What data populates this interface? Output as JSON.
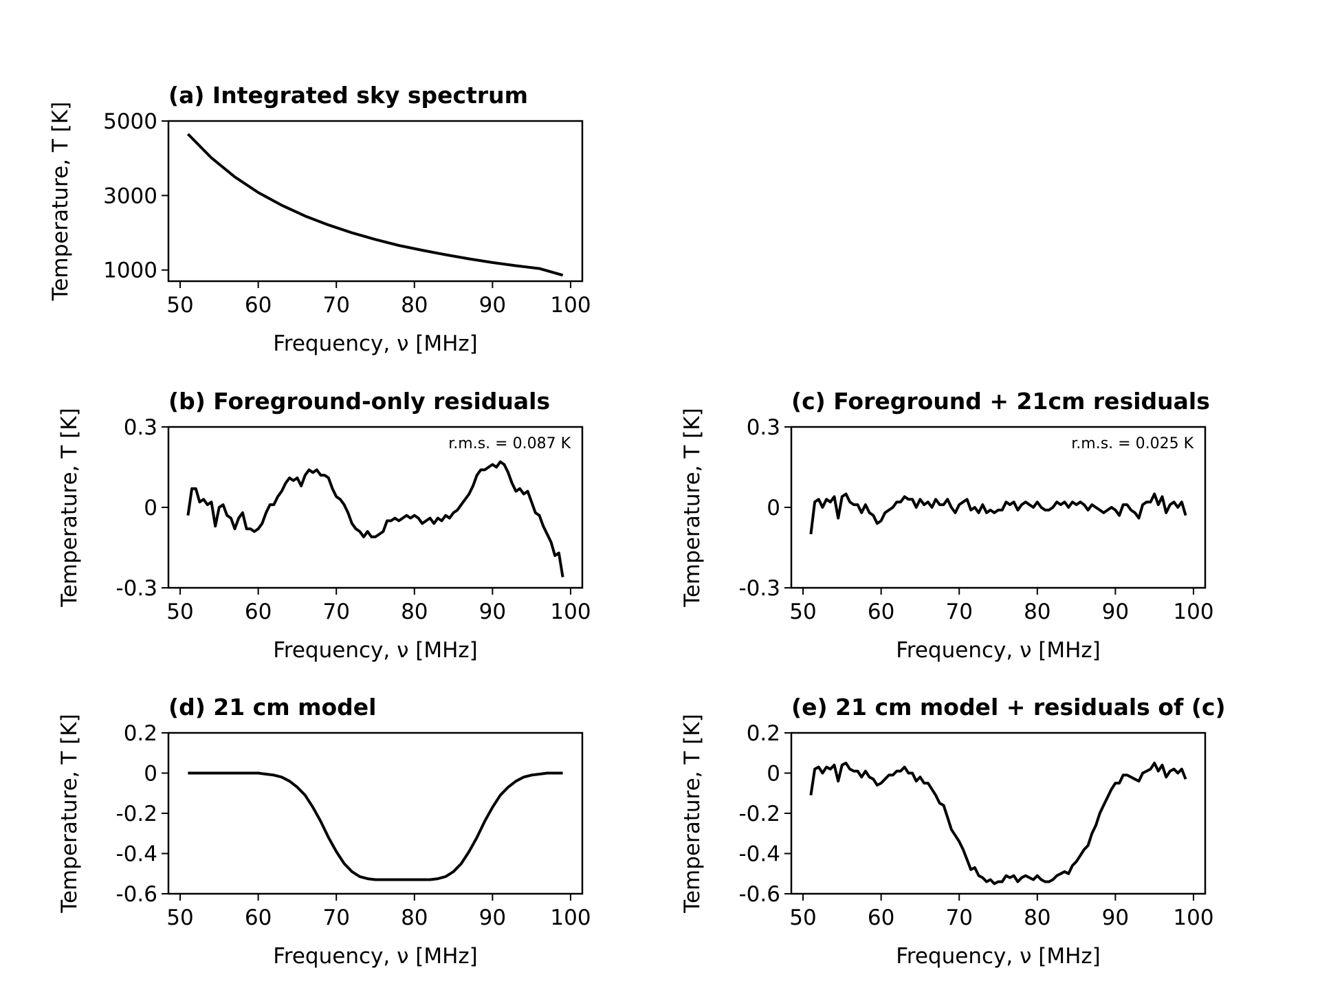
{
  "chart_data": [
    {
      "id": "a",
      "type": "line",
      "title": "(a) Integrated sky spectrum",
      "xlabel": "Frequency, ν [MHz]",
      "ylabel": "Temperature, T [K]",
      "xlim": [
        48.5,
        101.5
      ],
      "ylim": [
        700,
        5000
      ],
      "xticks": [
        50,
        60,
        70,
        80,
        90,
        100
      ],
      "xtick_labels": [
        "50",
        "60",
        "70",
        "80",
        "90",
        "100"
      ],
      "yticks": [
        1000,
        3000,
        5000
      ],
      "ytick_labels": [
        "1000",
        "3000",
        "5000"
      ],
      "grid": false,
      "series": [
        {
          "x": [
            51,
            54,
            57,
            60,
            63,
            66,
            69,
            72,
            75,
            78,
            81,
            84,
            87,
            90,
            93,
            96,
            99
          ],
          "y": [
            4650,
            4010,
            3500,
            3080,
            2740,
            2450,
            2210,
            2000,
            1820,
            1660,
            1530,
            1410,
            1300,
            1200,
            1115,
            1040,
            860
          ]
        }
      ]
    },
    {
      "id": "b",
      "type": "line",
      "title": "(b) Foreground-only residuals",
      "xlabel": "Frequency, ν [MHz]",
      "ylabel": "Temperature, T [K]",
      "annotation": "r.m.s. = 0.087 K",
      "xlim": [
        48.5,
        101.5
      ],
      "ylim": [
        -0.3,
        0.3
      ],
      "xticks": [
        50,
        60,
        70,
        80,
        90,
        100
      ],
      "xtick_labels": [
        "50",
        "60",
        "70",
        "80",
        "90",
        "100"
      ],
      "yticks": [
        0.3,
        0,
        -0.3
      ],
      "ytick_labels": [
        "0.3",
        "0",
        "-0.3"
      ],
      "grid": false,
      "series": [
        {
          "x": [
            51,
            51.5,
            52,
            52.5,
            53,
            53.5,
            54,
            54.5,
            55,
            55.5,
            56,
            56.5,
            57,
            57.5,
            58,
            58.5,
            59,
            59.5,
            60,
            60.5,
            61,
            61.5,
            62,
            62.5,
            63,
            63.5,
            64,
            64.5,
            65,
            65.5,
            66,
            66.5,
            67,
            67.5,
            68,
            68.5,
            69,
            69.5,
            70,
            70.5,
            71,
            71.5,
            72,
            72.5,
            73,
            73.5,
            74,
            74.5,
            75,
            75.5,
            76,
            76.5,
            77,
            77.5,
            78,
            78.5,
            79,
            79.5,
            80,
            80.5,
            81,
            81.5,
            82,
            82.5,
            83,
            83.5,
            84,
            84.5,
            85,
            85.5,
            86,
            86.5,
            87,
            87.5,
            88,
            88.5,
            89,
            89.5,
            90,
            90.5,
            91,
            91.5,
            92,
            92.5,
            93,
            93.5,
            94,
            94.5,
            95,
            95.5,
            96,
            96.5,
            97,
            97.5,
            98,
            98.5,
            99
          ],
          "y": [
            -0.03,
            0.07,
            0.07,
            0.02,
            0.03,
            0.01,
            0.02,
            -0.07,
            0.0,
            0.01,
            -0.03,
            -0.04,
            -0.08,
            -0.04,
            -0.02,
            -0.08,
            -0.08,
            -0.09,
            -0.08,
            -0.06,
            -0.02,
            0.01,
            0.01,
            0.04,
            0.06,
            0.09,
            0.11,
            0.1,
            0.11,
            0.08,
            0.12,
            0.14,
            0.13,
            0.14,
            0.12,
            0.12,
            0.11,
            0.07,
            0.04,
            0.03,
            0.01,
            -0.02,
            -0.06,
            -0.08,
            -0.09,
            -0.11,
            -0.09,
            -0.11,
            -0.11,
            -0.1,
            -0.09,
            -0.05,
            -0.05,
            -0.04,
            -0.05,
            -0.04,
            -0.03,
            -0.04,
            -0.03,
            -0.04,
            -0.06,
            -0.05,
            -0.04,
            -0.06,
            -0.04,
            -0.05,
            -0.03,
            -0.04,
            -0.02,
            -0.01,
            0.01,
            0.03,
            0.05,
            0.08,
            0.12,
            0.14,
            0.14,
            0.15,
            0.16,
            0.15,
            0.17,
            0.16,
            0.13,
            0.09,
            0.06,
            0.07,
            0.05,
            0.06,
            0.02,
            -0.02,
            -0.03,
            -0.07,
            -0.1,
            -0.13,
            -0.18,
            -0.17,
            -0.26
          ]
        }
      ]
    },
    {
      "id": "c",
      "type": "line",
      "title": "(c) Foreground + 21cm residuals",
      "xlabel": "Frequency, ν [MHz]",
      "ylabel": "Temperature, T [K]",
      "annotation": "r.m.s. = 0.025 K",
      "xlim": [
        48.5,
        101.5
      ],
      "ylim": [
        -0.3,
        0.3
      ],
      "xticks": [
        50,
        60,
        70,
        80,
        90,
        100
      ],
      "xtick_labels": [
        "50",
        "60",
        "70",
        "80",
        "90",
        "100"
      ],
      "yticks": [
        0.3,
        0,
        -0.3
      ],
      "ytick_labels": [
        "0.3",
        "0",
        "-0.3"
      ],
      "grid": false,
      "series": [
        {
          "x": [
            51,
            51.5,
            52,
            52.5,
            53,
            53.5,
            54,
            54.5,
            55,
            55.5,
            56,
            56.5,
            57,
            57.5,
            58,
            58.5,
            59,
            59.5,
            60,
            60.5,
            61,
            61.5,
            62,
            62.5,
            63,
            63.5,
            64,
            64.5,
            65,
            65.5,
            66,
            66.5,
            67,
            67.5,
            68,
            68.5,
            69,
            69.5,
            70,
            70.5,
            71,
            71.5,
            72,
            72.5,
            73,
            73.5,
            74,
            74.5,
            75,
            75.5,
            76,
            76.5,
            77,
            77.5,
            78,
            78.5,
            79,
            79.5,
            80,
            80.5,
            81,
            81.5,
            82,
            82.5,
            83,
            83.5,
            84,
            84.5,
            85,
            85.5,
            86,
            86.5,
            87,
            87.5,
            88,
            88.5,
            89,
            89.5,
            90,
            90.5,
            91,
            91.5,
            92,
            92.5,
            93,
            93.5,
            94,
            94.5,
            95,
            95.5,
            96,
            96.5,
            97,
            97.5,
            98,
            98.5,
            99
          ],
          "y": [
            -0.1,
            0.02,
            0.03,
            0.0,
            0.03,
            0.02,
            0.04,
            -0.04,
            0.04,
            0.05,
            0.02,
            0.01,
            0.01,
            -0.02,
            0.01,
            -0.02,
            -0.03,
            -0.06,
            -0.05,
            -0.02,
            -0.01,
            0.0,
            0.02,
            0.02,
            0.04,
            0.03,
            0.03,
            0.0,
            0.03,
            0.01,
            0.02,
            0.0,
            0.03,
            0.01,
            0.01,
            0.03,
            0.0,
            -0.02,
            0.01,
            0.02,
            0.03,
            -0.01,
            0.0,
            -0.02,
            0.01,
            -0.02,
            -0.01,
            -0.02,
            -0.01,
            -0.01,
            0.02,
            0.01,
            0.02,
            -0.01,
            0.01,
            0.02,
            0.01,
            0.0,
            0.02,
            0.0,
            -0.01,
            -0.01,
            0.0,
            0.02,
            0.01,
            0.02,
            0.0,
            0.02,
            0.01,
            0.02,
            0.01,
            -0.01,
            0.01,
            0.0,
            -0.01,
            -0.02,
            -0.01,
            0.0,
            -0.01,
            -0.03,
            0.01,
            0.01,
            -0.01,
            -0.02,
            -0.04,
            0.01,
            0.02,
            0.02,
            0.05,
            0.01,
            0.04,
            -0.02,
            0.01,
            0.02,
            0.0,
            0.02,
            -0.03
          ]
        }
      ]
    },
    {
      "id": "d",
      "type": "line",
      "title": "(d) 21 cm model",
      "xlabel": "Frequency, ν [MHz]",
      "ylabel": "Temperature, T [K]",
      "xlim": [
        48.5,
        101.5
      ],
      "ylim": [
        -0.6,
        0.2
      ],
      "xticks": [
        50,
        60,
        70,
        80,
        90,
        100
      ],
      "xtick_labels": [
        "50",
        "60",
        "70",
        "80",
        "90",
        "100"
      ],
      "yticks": [
        0.2,
        0,
        -0.2,
        -0.4,
        -0.6
      ],
      "ytick_labels": [
        "0.2",
        "0",
        "-0.2",
        "-0.4",
        "-0.6"
      ],
      "grid": false,
      "series": [
        {
          "x": [
            51,
            53,
            55,
            57,
            59,
            60,
            61,
            62,
            63,
            64,
            65,
            66,
            67,
            68,
            69,
            70,
            71,
            72,
            73,
            74,
            75,
            76,
            77,
            78,
            79,
            80,
            81,
            82,
            83,
            84,
            85,
            86,
            87,
            88,
            89,
            90,
            91,
            92,
            93,
            94,
            95,
            96,
            97,
            99
          ],
          "y": [
            0.0,
            0.0,
            0.0,
            0.0,
            0.0,
            0.0,
            -0.005,
            -0.01,
            -0.02,
            -0.04,
            -0.07,
            -0.11,
            -0.17,
            -0.24,
            -0.32,
            -0.39,
            -0.45,
            -0.49,
            -0.515,
            -0.525,
            -0.53,
            -0.53,
            -0.53,
            -0.53,
            -0.53,
            -0.53,
            -0.53,
            -0.53,
            -0.525,
            -0.515,
            -0.49,
            -0.45,
            -0.39,
            -0.32,
            -0.24,
            -0.17,
            -0.11,
            -0.07,
            -0.04,
            -0.02,
            -0.01,
            -0.005,
            0.0,
            0.0
          ]
        }
      ]
    },
    {
      "id": "e",
      "type": "line",
      "title": "(e) 21 cm model + residuals of (c)",
      "xlabel": "Frequency, ν [MHz]",
      "ylabel": "Temperature, T [K]",
      "xlim": [
        48.5,
        101.5
      ],
      "ylim": [
        -0.6,
        0.2
      ],
      "xticks": [
        50,
        60,
        70,
        80,
        90,
        100
      ],
      "xtick_labels": [
        "50",
        "60",
        "70",
        "80",
        "90",
        "100"
      ],
      "yticks": [
        0.2,
        0,
        -0.2,
        -0.4,
        -0.6
      ],
      "ytick_labels": [
        "0.2",
        "0",
        "-0.2",
        "-0.4",
        "-0.6"
      ],
      "grid": false,
      "series": [
        {
          "x": [
            51,
            51.5,
            52,
            52.5,
            53,
            53.5,
            54,
            54.5,
            55,
            55.5,
            56,
            56.5,
            57,
            57.5,
            58,
            58.5,
            59,
            59.5,
            60,
            60.5,
            61,
            61.5,
            62,
            62.5,
            63,
            63.5,
            64,
            64.5,
            65,
            65.5,
            66,
            66.5,
            67,
            67.5,
            68,
            68.5,
            69,
            69.5,
            70,
            70.5,
            71,
            71.5,
            72,
            72.5,
            73,
            73.5,
            74,
            74.5,
            75,
            75.5,
            76,
            76.5,
            77,
            77.5,
            78,
            78.5,
            79,
            79.5,
            80,
            80.5,
            81,
            81.5,
            82,
            82.5,
            83,
            83.5,
            84,
            84.5,
            85,
            85.5,
            86,
            86.5,
            87,
            87.5,
            88,
            88.5,
            89,
            89.5,
            90,
            90.5,
            91,
            91.5,
            92,
            92.5,
            93,
            93.5,
            94,
            94.5,
            95,
            95.5,
            96,
            96.5,
            97,
            97.5,
            98,
            98.5,
            99
          ],
          "y": [
            -0.11,
            0.02,
            0.03,
            0.0,
            0.03,
            0.02,
            0.04,
            -0.04,
            0.04,
            0.05,
            0.02,
            0.01,
            0.01,
            -0.02,
            0.01,
            -0.02,
            -0.03,
            -0.06,
            -0.05,
            -0.03,
            -0.01,
            -0.01,
            0.01,
            0.01,
            0.03,
            0.0,
            0.0,
            -0.04,
            -0.02,
            -0.05,
            -0.05,
            -0.08,
            -0.11,
            -0.15,
            -0.16,
            -0.22,
            -0.28,
            -0.31,
            -0.34,
            -0.38,
            -0.43,
            -0.48,
            -0.47,
            -0.51,
            -0.52,
            -0.54,
            -0.53,
            -0.55,
            -0.54,
            -0.54,
            -0.51,
            -0.52,
            -0.51,
            -0.54,
            -0.52,
            -0.51,
            -0.52,
            -0.53,
            -0.51,
            -0.53,
            -0.54,
            -0.54,
            -0.53,
            -0.51,
            -0.5,
            -0.49,
            -0.5,
            -0.46,
            -0.44,
            -0.41,
            -0.38,
            -0.36,
            -0.3,
            -0.26,
            -0.2,
            -0.16,
            -0.12,
            -0.08,
            -0.05,
            -0.05,
            -0.01,
            -0.01,
            -0.02,
            -0.03,
            -0.04,
            0.0,
            0.01,
            0.02,
            0.05,
            0.01,
            0.04,
            -0.02,
            0.01,
            0.02,
            0.0,
            0.02,
            -0.03
          ]
        }
      ]
    }
  ]
}
